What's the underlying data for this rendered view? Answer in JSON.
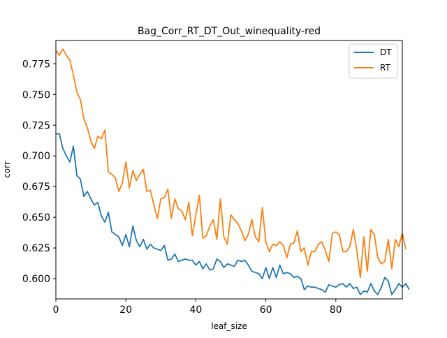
{
  "chart_data": {
    "type": "line",
    "title": "Bag_Corr_RT_DT_Out_winequality-red",
    "xlabel": "leaf_size",
    "ylabel": "corr",
    "xlim": [
      0,
      99
    ],
    "ylim": [
      0.5835,
      0.794
    ],
    "xticks": [
      0,
      20,
      40,
      60,
      80
    ],
    "xtick_labels": [
      "0",
      "20",
      "40",
      "60",
      "80"
    ],
    "yticks": [
      0.6,
      0.625,
      0.65,
      0.675,
      0.7,
      0.725,
      0.75,
      0.775
    ],
    "ytick_labels": [
      "0.600",
      "0.625",
      "0.650",
      "0.675",
      "0.700",
      "0.725",
      "0.750",
      "0.775"
    ],
    "grid": false,
    "legend_position": "top-right",
    "series": [
      {
        "name": "DT",
        "color": "#1f77b4",
        "values": [
          0.718,
          0.718,
          0.706,
          0.7,
          0.695,
          0.708,
          0.684,
          0.681,
          0.667,
          0.671,
          0.665,
          0.66,
          0.662,
          0.651,
          0.646,
          0.654,
          0.638,
          0.636,
          0.634,
          0.627,
          0.636,
          0.626,
          0.643,
          0.631,
          0.626,
          0.632,
          0.624,
          0.628,
          0.625,
          0.624,
          0.623,
          0.627,
          0.615,
          0.616,
          0.62,
          0.614,
          0.615,
          0.616,
          0.615,
          0.615,
          0.611,
          0.614,
          0.608,
          0.612,
          0.607,
          0.608,
          0.616,
          0.614,
          0.609,
          0.612,
          0.611,
          0.61,
          0.615,
          0.614,
          0.615,
          0.611,
          0.606,
          0.605,
          0.604,
          0.6,
          0.609,
          0.6,
          0.609,
          0.601,
          0.611,
          0.604,
          0.605,
          0.604,
          0.601,
          0.602,
          0.6,
          0.591,
          0.594,
          0.593,
          0.593,
          0.592,
          0.591,
          0.589,
          0.595,
          0.594,
          0.593,
          0.595,
          0.596,
          0.593,
          0.596,
          0.592,
          0.593,
          0.587,
          0.59,
          0.589,
          0.596,
          0.59,
          0.587,
          0.593,
          0.601,
          0.598,
          0.587,
          0.591,
          0.596,
          0.593,
          0.596,
          0.591
        ]
      },
      {
        "name": "RT",
        "color": "#ff7f0e",
        "values": [
          0.786,
          0.782,
          0.787,
          0.782,
          0.778,
          0.766,
          0.752,
          0.746,
          0.73,
          0.723,
          0.712,
          0.706,
          0.716,
          0.714,
          0.721,
          0.687,
          0.685,
          0.682,
          0.671,
          0.678,
          0.695,
          0.674,
          0.688,
          0.68,
          0.685,
          0.689,
          0.671,
          0.672,
          0.66,
          0.649,
          0.665,
          0.666,
          0.673,
          0.649,
          0.665,
          0.657,
          0.655,
          0.648,
          0.662,
          0.635,
          0.652,
          0.668,
          0.633,
          0.635,
          0.643,
          0.648,
          0.632,
          0.665,
          0.634,
          0.628,
          0.652,
          0.648,
          0.645,
          0.639,
          0.631,
          0.636,
          0.648,
          0.634,
          0.63,
          0.658,
          0.63,
          0.622,
          0.628,
          0.627,
          0.63,
          0.627,
          0.617,
          0.628,
          0.629,
          0.639,
          0.622,
          0.625,
          0.611,
          0.622,
          0.622,
          0.628,
          0.63,
          0.623,
          0.614,
          0.637,
          0.638,
          0.636,
          0.622,
          0.622,
          0.626,
          0.64,
          0.623,
          0.601,
          0.634,
          0.606,
          0.64,
          0.636,
          0.617,
          0.612,
          0.614,
          0.632,
          0.608,
          0.632,
          0.626,
          0.637,
          0.624
        ]
      }
    ]
  }
}
